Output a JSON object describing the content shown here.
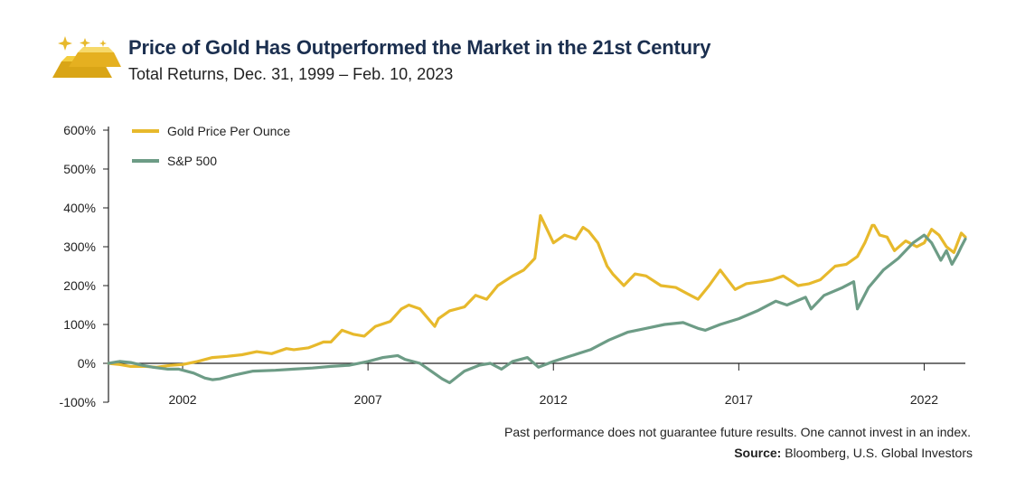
{
  "header": {
    "title": "Price of Gold Has Outperformed the Market in the 21st Century",
    "subtitle": "Total Returns, Dec. 31, 1999 – Feb. 10, 2023",
    "logo_icon": "gold-bars-icon"
  },
  "footer": {
    "disclaimer": "Past performance does not guarantee future results. One cannot invest in an index.",
    "source_label": "Source:",
    "source_text": "Bloomberg, U.S. Global Investors"
  },
  "chart_data": {
    "type": "line",
    "title": "Price of Gold Has Outperformed the Market in the 21st Century",
    "subtitle": "Total Returns, Dec. 31, 1999 – Feb. 10, 2023",
    "xlabel": "",
    "ylabel": "",
    "xlim": [
      2000.0,
      2023.11
    ],
    "ylim": [
      -100,
      600
    ],
    "y_ticks": [
      -100,
      0,
      100,
      200,
      300,
      400,
      500,
      600
    ],
    "y_tick_labels": [
      "-100%",
      "0%",
      "100%",
      "200%",
      "300%",
      "400%",
      "500%",
      "600%"
    ],
    "x_ticks": [
      2002,
      2007,
      2012,
      2017,
      2022
    ],
    "x_tick_labels": [
      "2002",
      "2007",
      "2012",
      "2017",
      "2022"
    ],
    "grid": false,
    "legend_position": "top-left",
    "series": [
      {
        "name": "Gold Price Per Ounce",
        "color": "#e7b92c",
        "points": [
          [
            2000.0,
            0
          ],
          [
            2000.3,
            -3
          ],
          [
            2000.6,
            -8
          ],
          [
            2001.0,
            -8
          ],
          [
            2001.3,
            -10
          ],
          [
            2001.7,
            -5
          ],
          [
            2002.0,
            -3
          ],
          [
            2002.4,
            5
          ],
          [
            2002.8,
            15
          ],
          [
            2003.2,
            18
          ],
          [
            2003.6,
            22
          ],
          [
            2004.0,
            30
          ],
          [
            2004.4,
            25
          ],
          [
            2004.8,
            38
          ],
          [
            2005.0,
            35
          ],
          [
            2005.4,
            40
          ],
          [
            2005.8,
            55
          ],
          [
            2006.0,
            55
          ],
          [
            2006.3,
            85
          ],
          [
            2006.6,
            75
          ],
          [
            2006.9,
            70
          ],
          [
            2007.2,
            95
          ],
          [
            2007.6,
            108
          ],
          [
            2007.9,
            140
          ],
          [
            2008.1,
            150
          ],
          [
            2008.4,
            140
          ],
          [
            2008.8,
            95
          ],
          [
            2008.9,
            115
          ],
          [
            2009.2,
            135
          ],
          [
            2009.6,
            145
          ],
          [
            2009.9,
            175
          ],
          [
            2010.2,
            165
          ],
          [
            2010.5,
            200
          ],
          [
            2010.9,
            225
          ],
          [
            2011.2,
            240
          ],
          [
            2011.5,
            270
          ],
          [
            2011.65,
            380
          ],
          [
            2011.8,
            350
          ],
          [
            2012.0,
            310
          ],
          [
            2012.3,
            330
          ],
          [
            2012.6,
            320
          ],
          [
            2012.8,
            350
          ],
          [
            2012.95,
            340
          ],
          [
            2013.2,
            310
          ],
          [
            2013.45,
            250
          ],
          [
            2013.6,
            230
          ],
          [
            2013.9,
            200
          ],
          [
            2014.2,
            230
          ],
          [
            2014.5,
            225
          ],
          [
            2014.9,
            200
          ],
          [
            2015.3,
            195
          ],
          [
            2015.7,
            175
          ],
          [
            2015.9,
            165
          ],
          [
            2016.2,
            200
          ],
          [
            2016.5,
            240
          ],
          [
            2016.9,
            190
          ],
          [
            2017.2,
            205
          ],
          [
            2017.6,
            210
          ],
          [
            2017.9,
            215
          ],
          [
            2018.2,
            225
          ],
          [
            2018.6,
            200
          ],
          [
            2018.9,
            205
          ],
          [
            2019.2,
            215
          ],
          [
            2019.6,
            250
          ],
          [
            2019.9,
            255
          ],
          [
            2020.2,
            275
          ],
          [
            2020.4,
            310
          ],
          [
            2020.6,
            355
          ],
          [
            2020.65,
            355
          ],
          [
            2020.8,
            330
          ],
          [
            2021.0,
            325
          ],
          [
            2021.2,
            290
          ],
          [
            2021.5,
            315
          ],
          [
            2021.8,
            300
          ],
          [
            2022.0,
            310
          ],
          [
            2022.2,
            345
          ],
          [
            2022.4,
            330
          ],
          [
            2022.6,
            300
          ],
          [
            2022.8,
            285
          ],
          [
            2022.9,
            310
          ],
          [
            2023.0,
            335
          ],
          [
            2023.11,
            325
          ]
        ]
      },
      {
        "name": "S&P 500",
        "color": "#6d9c86",
        "points": [
          [
            2000.0,
            0
          ],
          [
            2000.3,
            5
          ],
          [
            2000.6,
            2
          ],
          [
            2000.9,
            -5
          ],
          [
            2001.2,
            -10
          ],
          [
            2001.6,
            -15
          ],
          [
            2001.9,
            -15
          ],
          [
            2002.3,
            -25
          ],
          [
            2002.6,
            -38
          ],
          [
            2002.8,
            -42
          ],
          [
            2003.0,
            -40
          ],
          [
            2003.4,
            -30
          ],
          [
            2003.9,
            -20
          ],
          [
            2004.5,
            -18
          ],
          [
            2005.0,
            -15
          ],
          [
            2005.5,
            -12
          ],
          [
            2006.0,
            -8
          ],
          [
            2006.5,
            -5
          ],
          [
            2007.0,
            5
          ],
          [
            2007.4,
            15
          ],
          [
            2007.8,
            20
          ],
          [
            2008.0,
            10
          ],
          [
            2008.4,
            0
          ],
          [
            2008.7,
            -20
          ],
          [
            2009.0,
            -40
          ],
          [
            2009.2,
            -50
          ],
          [
            2009.6,
            -20
          ],
          [
            2010.0,
            -5
          ],
          [
            2010.3,
            0
          ],
          [
            2010.6,
            -15
          ],
          [
            2010.9,
            5
          ],
          [
            2011.3,
            15
          ],
          [
            2011.6,
            -10
          ],
          [
            2012.0,
            5
          ],
          [
            2012.5,
            20
          ],
          [
            2013.0,
            35
          ],
          [
            2013.5,
            60
          ],
          [
            2014.0,
            80
          ],
          [
            2014.5,
            90
          ],
          [
            2015.0,
            100
          ],
          [
            2015.5,
            105
          ],
          [
            2015.9,
            90
          ],
          [
            2016.1,
            85
          ],
          [
            2016.5,
            100
          ],
          [
            2017.0,
            115
          ],
          [
            2017.5,
            135
          ],
          [
            2018.0,
            160
          ],
          [
            2018.3,
            150
          ],
          [
            2018.8,
            170
          ],
          [
            2018.95,
            140
          ],
          [
            2019.3,
            175
          ],
          [
            2019.8,
            195
          ],
          [
            2020.1,
            210
          ],
          [
            2020.2,
            140
          ],
          [
            2020.5,
            195
          ],
          [
            2020.9,
            240
          ],
          [
            2021.3,
            270
          ],
          [
            2021.7,
            310
          ],
          [
            2022.0,
            330
          ],
          [
            2022.2,
            310
          ],
          [
            2022.45,
            265
          ],
          [
            2022.6,
            290
          ],
          [
            2022.75,
            255
          ],
          [
            2022.9,
            280
          ],
          [
            2023.0,
            300
          ],
          [
            2023.11,
            320
          ]
        ]
      }
    ]
  }
}
